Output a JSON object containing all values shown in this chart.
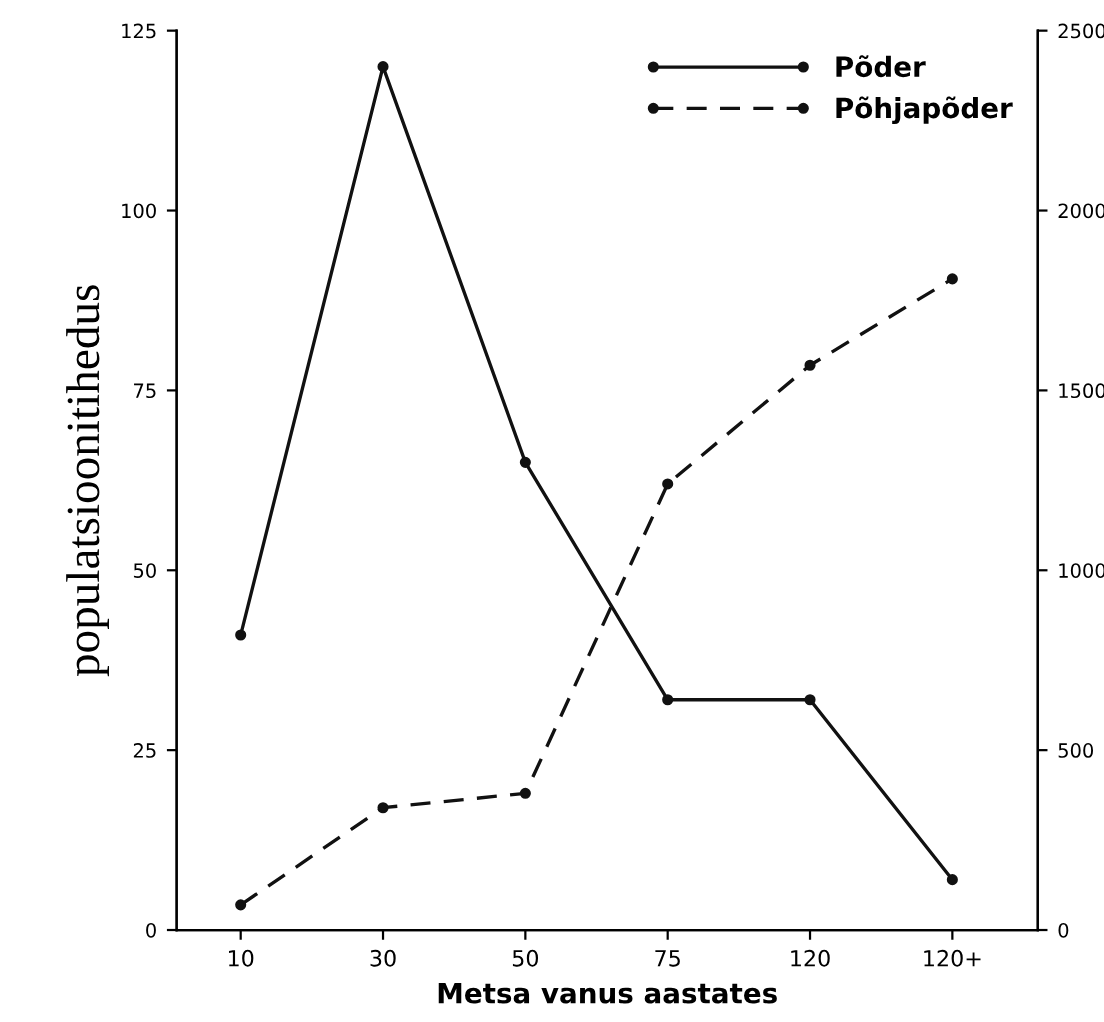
{
  "chart_data": {
    "type": "line",
    "xlabel": "Metsa vanus aastates",
    "ylabel": "populatsioonitihedus",
    "categories": [
      "10",
      "30",
      "50",
      "75",
      "120",
      "120+"
    ],
    "series": [
      {
        "name": "Põder",
        "color": "#111111",
        "line_style": "solid",
        "values": [
          41,
          120,
          65,
          32,
          32,
          7
        ]
      },
      {
        "name": "Põhjapõder",
        "color": "#111111",
        "line_style": "dashed",
        "axis": "y2",
        "values": [
          70,
          340,
          380,
          1240,
          1570,
          1810
        ]
      }
    ],
    "ylim": [
      0,
      125
    ],
    "yticks": [
      0,
      25,
      50,
      75,
      100,
      125
    ],
    "y2lim": [
      0,
      2500
    ],
    "y2ticks": [
      0,
      500,
      1000,
      1500,
      2000,
      2500
    ],
    "marker": "circle",
    "grid": false,
    "legend": "top right"
  }
}
